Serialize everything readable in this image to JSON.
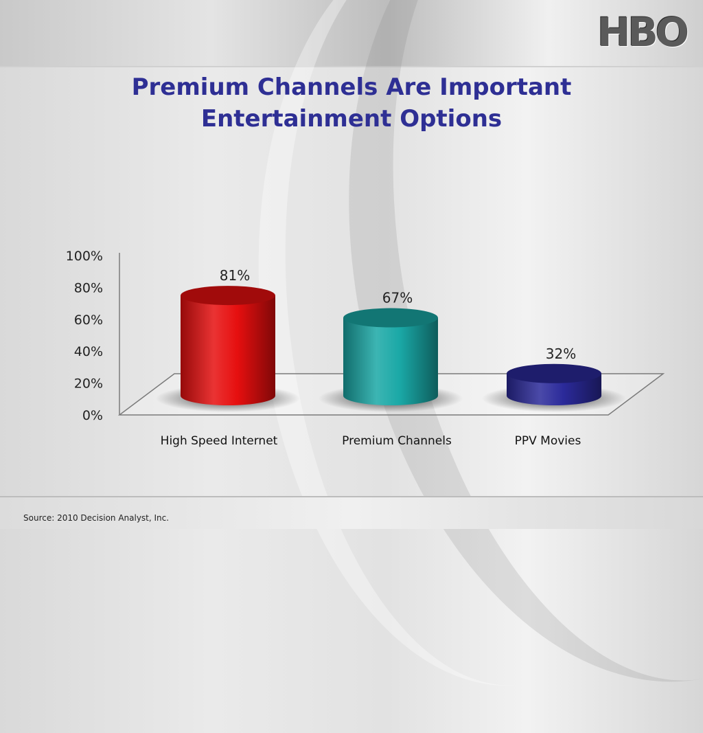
{
  "slide": {
    "title_lines": [
      "Premium Channels Are Important",
      "Entertainment Options"
    ],
    "logo_text": "HBO",
    "source": "Source: 2010 Decision Analyst, Inc."
  },
  "chart_data": {
    "type": "bar",
    "categories": [
      "High Speed Internet",
      "Premium Channels",
      "PPV  Movies"
    ],
    "values": [
      81,
      67,
      32
    ],
    "value_labels": [
      "81%",
      "67%",
      "32%"
    ],
    "ylim": [
      0,
      100
    ],
    "yticks": [
      0,
      20,
      40,
      60,
      80,
      100
    ],
    "ytick_labels": [
      "0%",
      "20%",
      "40%",
      "60%",
      "80%",
      "100%"
    ],
    "colors": [
      "#e60f0f",
      "#1aa8a6",
      "#2b2a9a"
    ],
    "title": "",
    "xlabel": "",
    "ylabel": "",
    "legend": "none",
    "grid": false
  }
}
